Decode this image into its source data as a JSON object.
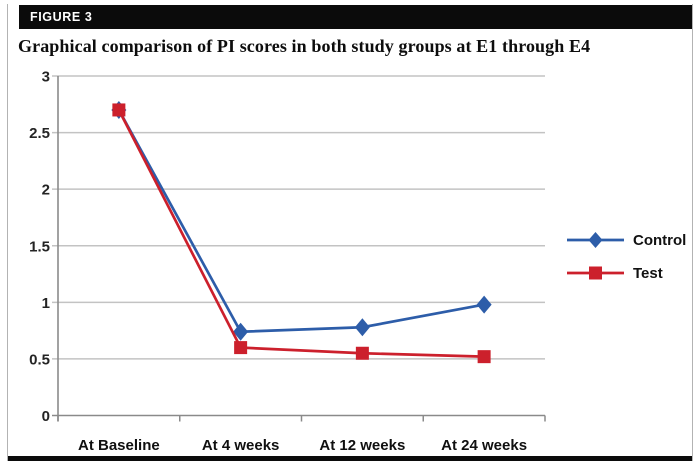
{
  "figure": {
    "tag": "FIGURE 3",
    "title": "Graphical comparison of PI scores in both study groups at E1 through E4"
  },
  "chart_data": {
    "type": "line",
    "title": "Graphical comparison of PI scores in both study groups at E1 through E4",
    "categories": [
      "At Baseline",
      "At 4 weeks",
      "At 12 weeks",
      "At 24 weeks"
    ],
    "series": [
      {
        "name": "Control",
        "marker": "diamond",
        "color": "#2d5da9",
        "values": [
          2.7,
          0.74,
          0.78,
          0.98
        ]
      },
      {
        "name": "Test",
        "marker": "square",
        "color": "#cc202c",
        "values": [
          2.7,
          0.6,
          0.55,
          0.52
        ]
      }
    ],
    "xlabel": "",
    "ylabel": "",
    "ylim": [
      0,
      3
    ],
    "ytick_step": 0.5,
    "ytick_labels": [
      "0",
      "0.5",
      "1",
      "1.5",
      "2",
      "2.5",
      "3"
    ],
    "grid": "horizontal",
    "legend_position": "right",
    "colors": {
      "gridline": "#c3c3c3",
      "axis": "#8a8a8a"
    }
  }
}
